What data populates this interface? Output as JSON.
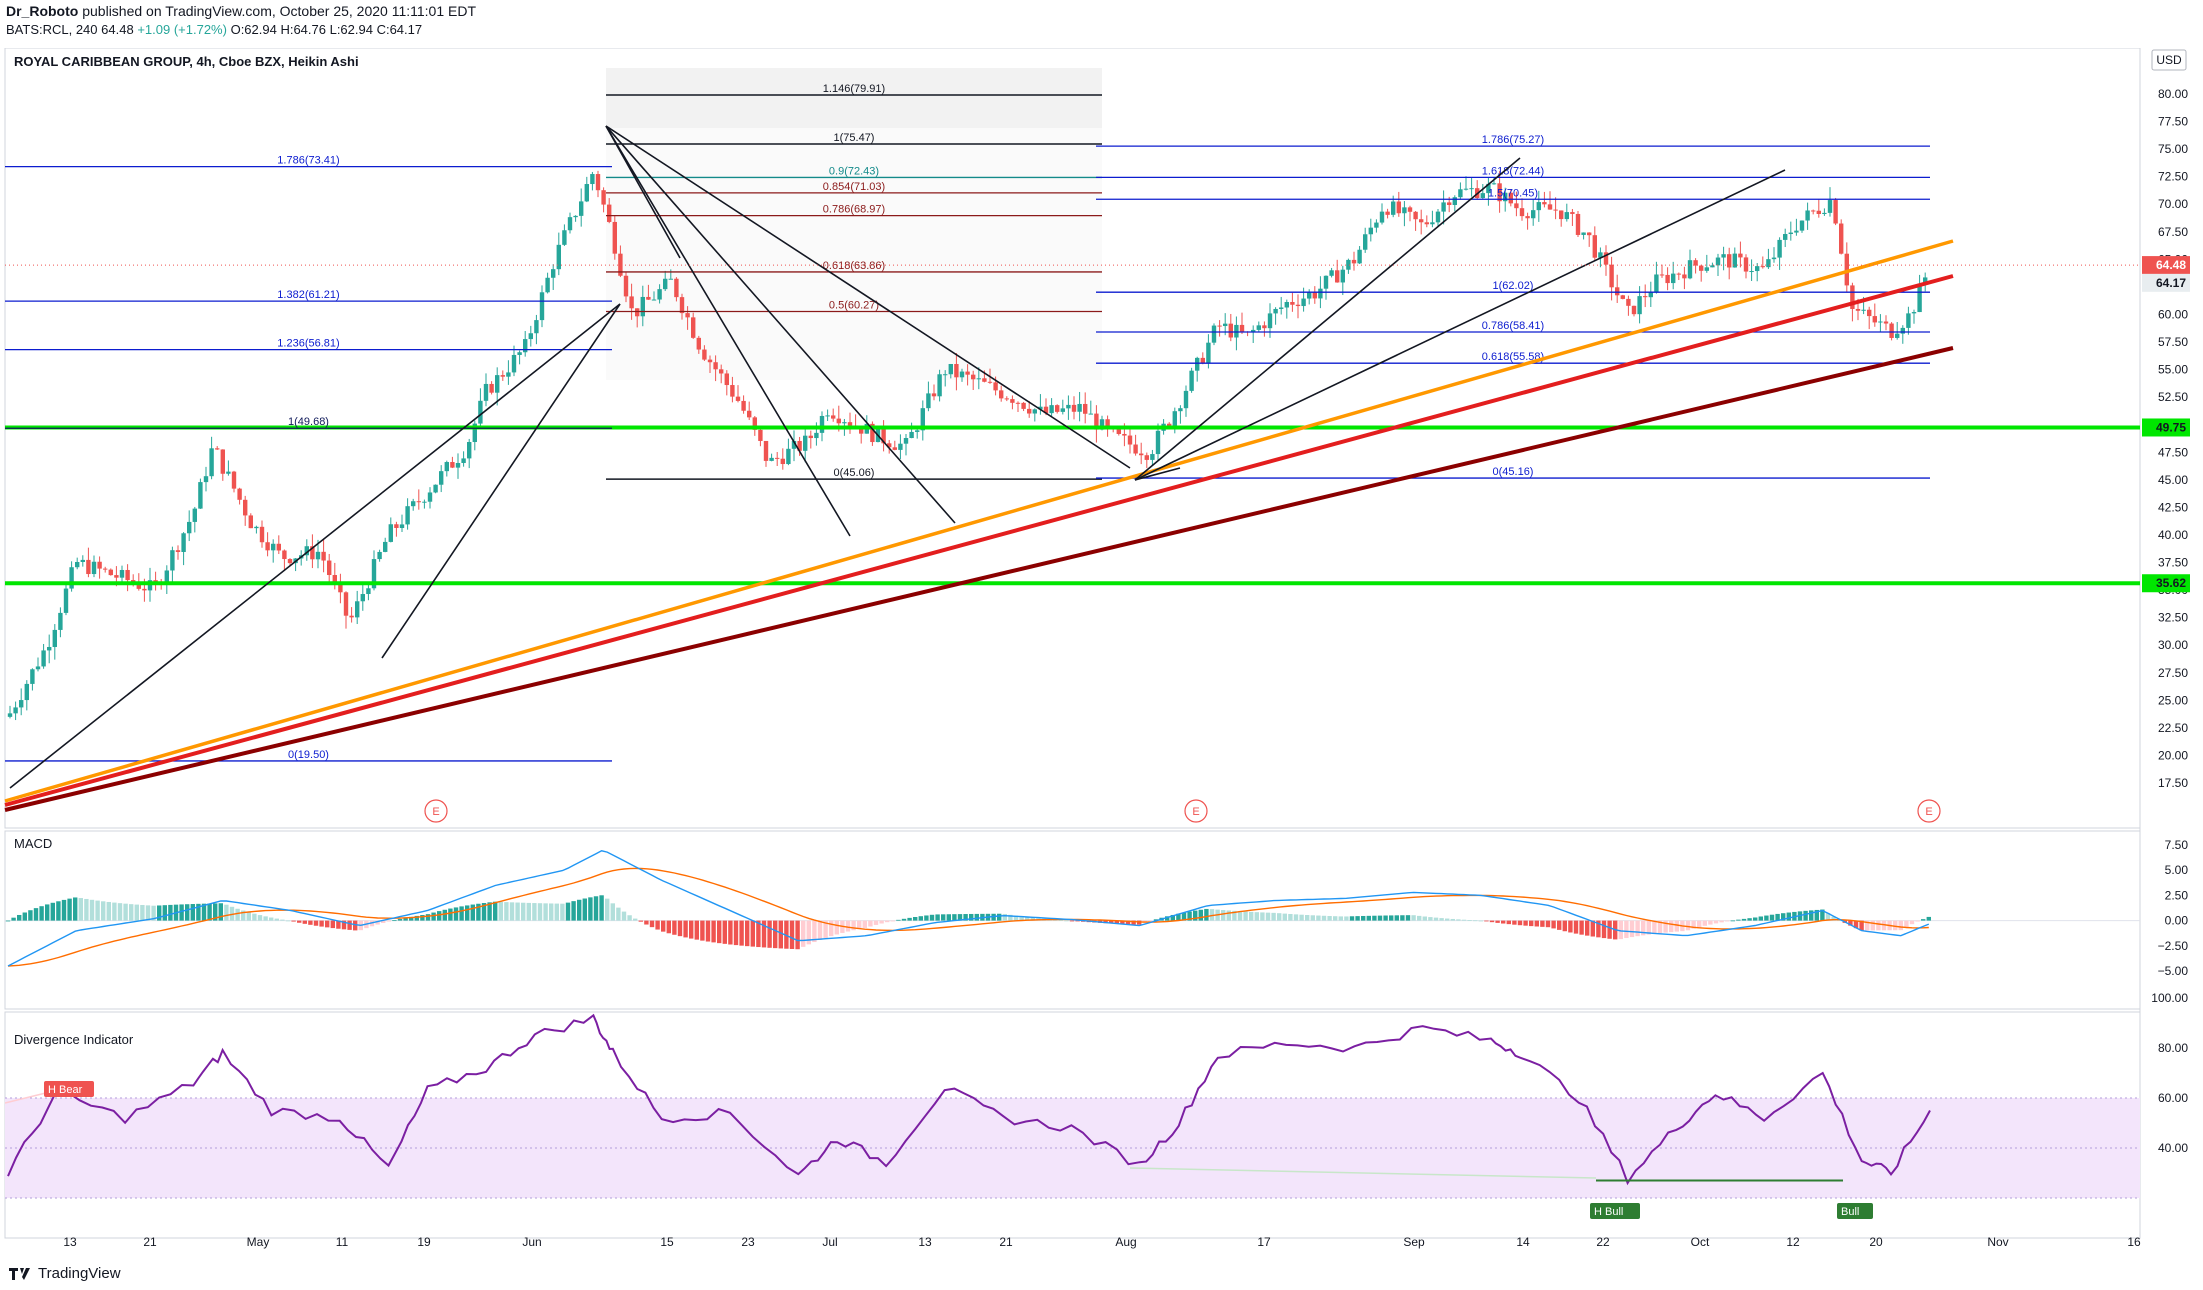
{
  "header": {
    "author": "Dr_Roboto",
    "published": "published on TradingView.com, October 25, 2020 11:11:01 EDT",
    "symbol_line": "BATS:RCL, 240",
    "last": "64.48",
    "change": "+1.09 (+1.72%)",
    "ohlc": "O:62.94 H:64.76 L:62.94 C:64.17"
  },
  "chart_title": "ROYAL CARIBBEAN GROUP, 4h, Cboe BZX, Heikin Ashi",
  "currency": "USD",
  "price_axis_ticks": [
    "80.00",
    "77.50",
    "75.00",
    "72.50",
    "70.00",
    "67.50",
    "65.00",
    "62.50",
    "60.00",
    "57.50",
    "55.00",
    "52.50",
    "50.00",
    "47.50",
    "45.00",
    "42.50",
    "40.00",
    "37.50",
    "35.00",
    "32.50",
    "30.00",
    "27.50",
    "25.00",
    "22.50",
    "20.00",
    "17.50"
  ],
  "price_badges": {
    "last_price": "64.48",
    "close_price": "64.17",
    "upper_support": "49.75",
    "lower_support": "35.62"
  },
  "fib_labels": {
    "left_1786": "1.786(73.41)",
    "left_1382": "1.382(61.21)",
    "left_1236": "1.236(56.81)",
    "left_1": "1(49.68)",
    "left_0": "0(19.50)",
    "mid_1146": "1.146(79.91)",
    "mid_1": "1(75.47)",
    "mid_09": "0.9(72.43)",
    "mid_0854": "0.854(71.03)",
    "mid_0786": "0.786(68.97)",
    "mid_0618": "0.618(63.86)",
    "mid_05": "0.5(60.27)",
    "mid_0": "0(45.06)",
    "right_1786": "1.786(75.27)",
    "right_1618": "1.618(72.44)",
    "right_x": "1.5(70.45)",
    "right_1": "1(62.02)",
    "right_0786": "0.786(58.41)",
    "right_0618": "0.618(55.58)",
    "right_0": "0(45.16)"
  },
  "time_axis_ticks": [
    "13",
    "21",
    "May",
    "11",
    "19",
    "Jun",
    "15",
    "23",
    "Jul",
    "13",
    "21",
    "Aug",
    "17",
    "Sep",
    "14",
    "22",
    "Oct",
    "12",
    "20",
    "Nov",
    "16"
  ],
  "earnings_marker": "E",
  "macd": {
    "title": "MACD",
    "ticks": [
      "7.50",
      "5.00",
      "2.50",
      "0.00",
      "−2.50",
      "−5.00"
    ]
  },
  "divergence": {
    "title": "Divergence Indicator",
    "ticks": [
      "100.00",
      "80.00",
      "60.00",
      "40.00"
    ],
    "labels": {
      "bear": "H Bear",
      "bull1": "H Bull",
      "bull2": "Bull"
    }
  },
  "footer": {
    "brand": "TradingView"
  },
  "colors": {
    "up": "#26a69a",
    "down": "#ef5350",
    "fib_blue": "#0c1ccf",
    "fib_red": "#8b1a1a",
    "green_line": "#00e600",
    "orange_trend": "#ff9800",
    "red_trend": "#e31e1e",
    "darkred_trend": "#8b0000",
    "rsi": "#7b1fa2"
  },
  "chart_data": {
    "type": "candlestick",
    "title": "ROYAL CARIBBEAN GROUP, 4h, Cboe BZX, Heikin Ashi",
    "y_range": [
      16.0,
      81.0
    ],
    "x_range": [
      "2020-04-09",
      "2020-11-20"
    ],
    "price_path": [
      [
        "2020-04-09",
        23.5
      ],
      [
        "2020-04-13",
        30.0
      ],
      [
        "2020-04-16",
        37.5
      ],
      [
        "2020-04-21",
        36.0
      ],
      [
        "2020-04-24",
        35.0
      ],
      [
        "2020-04-28",
        42.0
      ],
      [
        "2020-04-30",
        48.0
      ],
      [
        "2020-05-04",
        41.0
      ],
      [
        "2020-05-07",
        38.0
      ],
      [
        "2020-05-11",
        38.5
      ],
      [
        "2020-05-14",
        32.0
      ],
      [
        "2020-05-18",
        40.0
      ],
      [
        "2020-05-21",
        43.0
      ],
      [
        "2020-05-26",
        48.0
      ],
      [
        "2020-05-28",
        53.0
      ],
      [
        "2020-06-01",
        57.0
      ],
      [
        "2020-06-04",
        65.0
      ],
      [
        "2020-06-08",
        73.0
      ],
      [
        "2020-06-10",
        67.0
      ],
      [
        "2020-06-12",
        60.0
      ],
      [
        "2020-06-16",
        63.0
      ],
      [
        "2020-06-19",
        57.0
      ],
      [
        "2020-06-23",
        52.0
      ],
      [
        "2020-06-26",
        46.5
      ],
      [
        "2020-06-30",
        48.5
      ],
      [
        "2020-07-02",
        51.5
      ],
      [
        "2020-07-07",
        49.0
      ],
      [
        "2020-07-10",
        48.0
      ],
      [
        "2020-07-14",
        55.0
      ],
      [
        "2020-07-17",
        54.0
      ],
      [
        "2020-07-21",
        52.5
      ],
      [
        "2020-07-24",
        51.0
      ],
      [
        "2020-07-28",
        51.5
      ],
      [
        "2020-07-31",
        49.0
      ],
      [
        "2020-08-04",
        47.5
      ],
      [
        "2020-08-07",
        52.0
      ],
      [
        "2020-08-11",
        59.0
      ],
      [
        "2020-08-14",
        58.0
      ],
      [
        "2020-08-18",
        61.0
      ],
      [
        "2020-08-21",
        62.0
      ],
      [
        "2020-08-25",
        65.0
      ],
      [
        "2020-08-28",
        70.0
      ],
      [
        "2020-09-01",
        68.0
      ],
      [
        "2020-09-04",
        71.0
      ],
      [
        "2020-09-08",
        71.5
      ],
      [
        "2020-09-11",
        69.5
      ],
      [
        "2020-09-15",
        69.5
      ],
      [
        "2020-09-18",
        67.0
      ],
      [
        "2020-09-22",
        60.0
      ],
      [
        "2020-09-25",
        63.0
      ],
      [
        "2020-09-29",
        64.5
      ],
      [
        "2020-10-02",
        65.0
      ],
      [
        "2020-10-06",
        64.0
      ],
      [
        "2020-10-09",
        68.0
      ],
      [
        "2020-10-13",
        70.5
      ],
      [
        "2020-10-15",
        60.5
      ],
      [
        "2020-10-19",
        58.5
      ],
      [
        "2020-10-21",
        60.0
      ],
      [
        "2020-10-23",
        64.5
      ]
    ],
    "fib_levels": [
      {
        "label": "1.786(73.41)",
        "price": 73.41
      },
      {
        "label": "1.382(61.21)",
        "price": 61.21
      },
      {
        "label": "1.236(56.81)",
        "price": 56.81
      },
      {
        "label": "1(49.68)",
        "price": 49.68
      },
      {
        "label": "0(19.50)",
        "price": 19.5
      },
      {
        "label": "1.146(79.91)",
        "price": 79.91
      },
      {
        "label": "1(75.47)",
        "price": 75.47
      },
      {
        "label": "0.9(72.43)",
        "price": 72.43
      },
      {
        "label": "0.854(71.03)",
        "price": 71.03
      },
      {
        "label": "0.786(68.97)",
        "price": 68.97
      },
      {
        "label": "0.618(63.86)",
        "price": 63.86
      },
      {
        "label": "0.5(60.27)",
        "price": 60.27
      },
      {
        "label": "0(45.06)",
        "price": 45.06
      },
      {
        "label": "1.786(75.27)",
        "price": 75.27
      },
      {
        "label": "1.618(72.44)",
        "price": 72.44
      },
      {
        "label": "1(62.02)",
        "price": 62.02
      },
      {
        "label": "0.786(58.41)",
        "price": 58.41
      },
      {
        "label": "0.618(55.58)",
        "price": 55.58
      },
      {
        "label": "0(45.16)",
        "price": 45.16
      }
    ],
    "horizontal_support": [
      49.75,
      35.62
    ],
    "last_price": 64.48,
    "close_price": 64.17,
    "macd_range": [
      -5.0,
      7.5
    ],
    "macd_path": [
      [
        "2020-04-09",
        -4.5
      ],
      [
        "2020-04-16",
        -1.0
      ],
      [
        "2020-04-24",
        0.2
      ],
      [
        "2020-05-01",
        2.0
      ],
      [
        "2020-05-08",
        1.0
      ],
      [
        "2020-05-15",
        -0.5
      ],
      [
        "2020-05-22",
        1.0
      ],
      [
        "2020-05-29",
        3.5
      ],
      [
        "2020-06-05",
        5.0
      ],
      [
        "2020-06-09",
        7.0
      ],
      [
        "2020-06-15",
        4.0
      ],
      [
        "2020-06-22",
        1.0
      ],
      [
        "2020-06-29",
        -2.0
      ],
      [
        "2020-07-06",
        -1.5
      ],
      [
        "2020-07-13",
        -0.2
      ],
      [
        "2020-07-20",
        0.5
      ],
      [
        "2020-07-27",
        0.1
      ],
      [
        "2020-08-03",
        -0.5
      ],
      [
        "2020-08-10",
        1.5
      ],
      [
        "2020-08-17",
        2.0
      ],
      [
        "2020-08-24",
        2.2
      ],
      [
        "2020-08-31",
        2.8
      ],
      [
        "2020-09-07",
        2.5
      ],
      [
        "2020-09-14",
        1.5
      ],
      [
        "2020-09-21",
        -1.0
      ],
      [
        "2020-09-28",
        -1.5
      ],
      [
        "2020-10-05",
        -0.5
      ],
      [
        "2020-10-12",
        1.0
      ],
      [
        "2020-10-16",
        -1.0
      ],
      [
        "2020-10-20",
        -1.5
      ],
      [
        "2020-10-23",
        -0.3
      ]
    ],
    "divergence_range": [
      20,
      100
    ],
    "rsi_path": [
      [
        "2020-04-09",
        30
      ],
      [
        "2020-04-14",
        62
      ],
      [
        "2020-04-21",
        52
      ],
      [
        "2020-04-28",
        66
      ],
      [
        "2020-05-01",
        78
      ],
      [
        "2020-05-06",
        55
      ],
      [
        "2020-05-13",
        52
      ],
      [
        "2020-05-18",
        32
      ],
      [
        "2020-05-22",
        63
      ],
      [
        "2020-05-28",
        72
      ],
      [
        "2020-06-02",
        85
      ],
      [
        "2020-06-08",
        92
      ],
      [
        "2020-06-10",
        78
      ],
      [
        "2020-06-15",
        52
      ],
      [
        "2020-06-22",
        54
      ],
      [
        "2020-06-29",
        29
      ],
      [
        "2020-07-03",
        44
      ],
      [
        "2020-07-08",
        34
      ],
      [
        "2020-07-14",
        64
      ],
      [
        "2020-07-20",
        52
      ],
      [
        "2020-07-27",
        48
      ],
      [
        "2020-08-03",
        33
      ],
      [
        "2020-08-07",
        50
      ],
      [
        "2020-08-11",
        77
      ],
      [
        "2020-08-18",
        82
      ],
      [
        "2020-08-25",
        80
      ],
      [
        "2020-09-01",
        88
      ],
      [
        "2020-09-08",
        83
      ],
      [
        "2020-09-11",
        78
      ],
      [
        "2020-09-17",
        60
      ],
      [
        "2020-09-22",
        28
      ],
      [
        "2020-09-27",
        48
      ],
      [
        "2020-10-01",
        62
      ],
      [
        "2020-10-06",
        52
      ],
      [
        "2020-10-12",
        70
      ],
      [
        "2020-10-16",
        35
      ],
      [
        "2020-10-19",
        30
      ],
      [
        "2020-10-23",
        55
      ]
    ]
  }
}
